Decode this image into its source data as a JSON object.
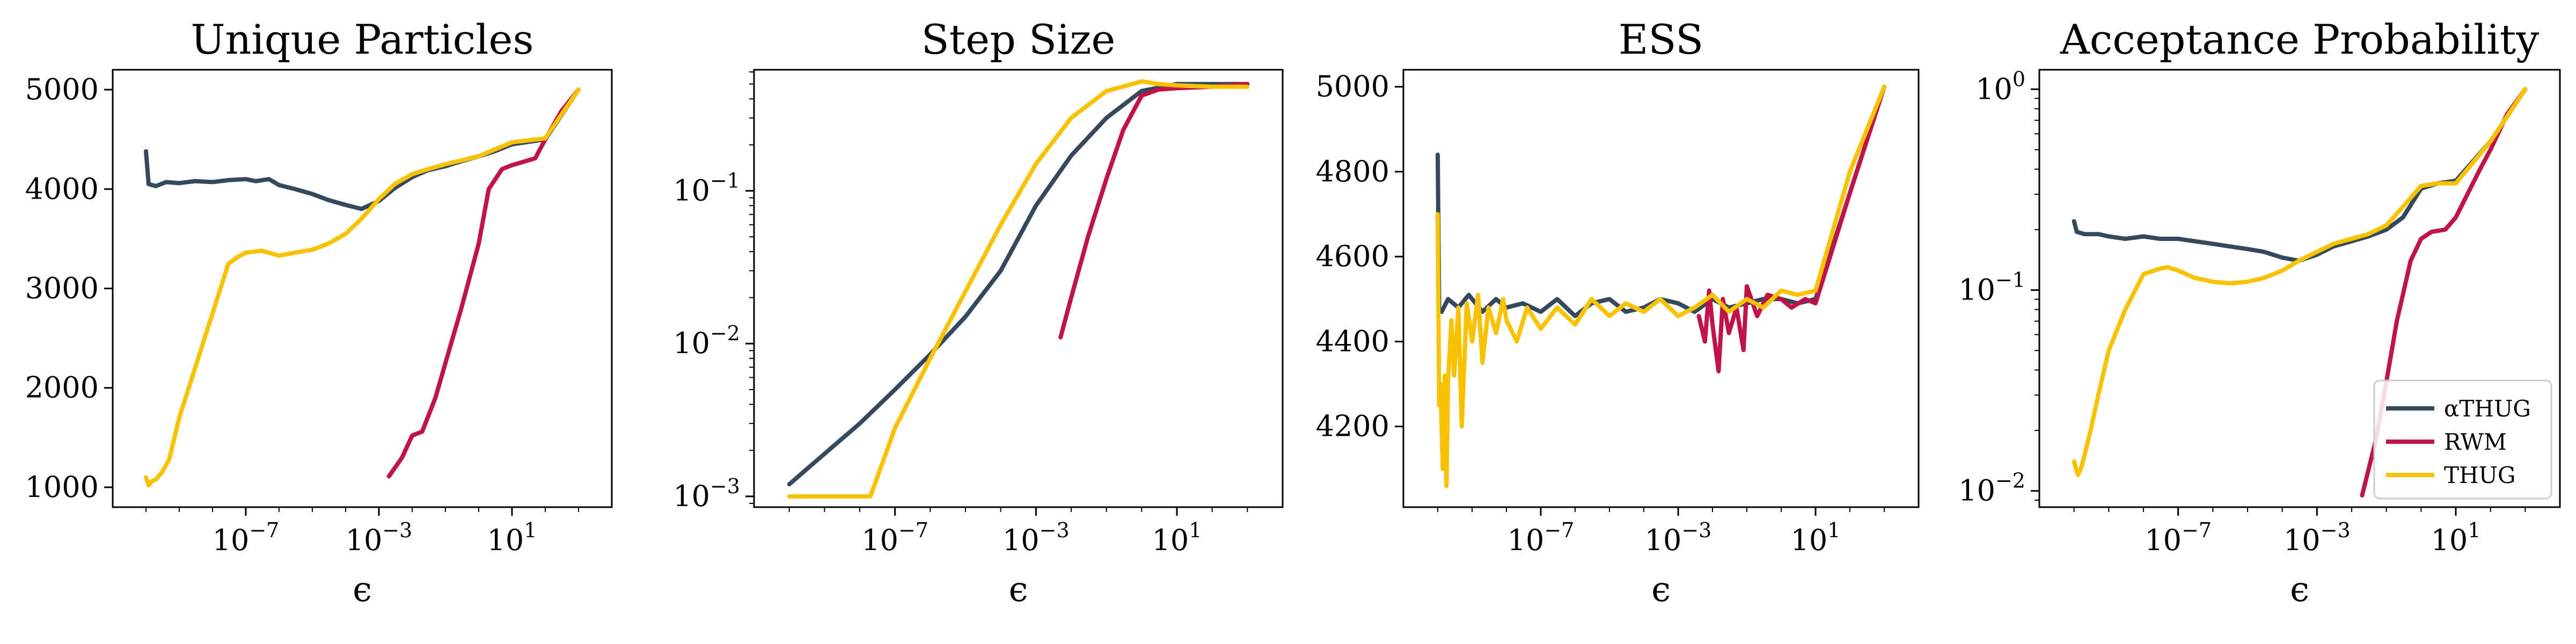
{
  "colors": {
    "alpha_thug": "#34495e",
    "rwm": "#c0134a",
    "thug": "#f8c200"
  },
  "legend": {
    "entries": [
      "αTHUG",
      "RWM",
      "THUG"
    ],
    "placement": "lower-right",
    "panel": 3
  },
  "chart_data": [
    {
      "type": "line",
      "title": "Unique Particles",
      "xlabel": "ϵ",
      "ylabel": "",
      "xscale": "log",
      "yscale": "linear",
      "xlim": [
        1e-11,
        10000.0
      ],
      "ylim": [
        800,
        5200
      ],
      "xticks": [
        {
          "value": 1e-07,
          "label": "10",
          "exp": "−7"
        },
        {
          "value": 0.001,
          "label": "10",
          "exp": "−3"
        },
        {
          "value": 10,
          "label": "10",
          "exp": "1"
        }
      ],
      "yticks": [
        {
          "value": 1000,
          "label": "1000"
        },
        {
          "value": 2000,
          "label": "2000"
        },
        {
          "value": 3000,
          "label": "3000"
        },
        {
          "value": 4000,
          "label": "4000"
        },
        {
          "value": 5000,
          "label": "5000"
        }
      ],
      "series": [
        {
          "name": "αTHUG",
          "key": "alpha_thug",
          "x": [
            1e-10,
            1.2e-10,
            2e-10,
            4e-10,
            1e-09,
            3e-09,
            1e-08,
            3e-08,
            1e-07,
            2e-07,
            5e-07,
            1e-06,
            3e-06,
            1e-05,
            3e-05,
            0.0001,
            0.0003,
            0.001,
            0.003,
            0.01,
            0.03,
            0.1,
            0.3,
            1,
            3,
            10,
            100,
            1000
          ],
          "y": [
            4380,
            4050,
            4030,
            4070,
            4060,
            4080,
            4070,
            4090,
            4100,
            4080,
            4100,
            4040,
            4000,
            3950,
            3890,
            3840,
            3800,
            3880,
            4010,
            4120,
            4190,
            4230,
            4280,
            4330,
            4380,
            4450,
            4500,
            5000
          ]
        },
        {
          "name": "RWM",
          "key": "rwm",
          "x": [
            0.002,
            0.005,
            0.01,
            0.02,
            0.05,
            0.1,
            0.3,
            1,
            2,
            5,
            10,
            50,
            100,
            300,
            1000
          ],
          "y": [
            1110,
            1300,
            1520,
            1560,
            1900,
            2250,
            2800,
            3450,
            4000,
            4200,
            4240,
            4310,
            4500,
            4780,
            5000
          ]
        },
        {
          "name": "THUG",
          "key": "thug",
          "x": [
            1e-10,
            1.2e-10,
            1.5e-10,
            2e-10,
            3e-10,
            5e-10,
            1e-09,
            3e-09,
            1e-08,
            3e-08,
            6e-08,
            1e-07,
            3e-07,
            1e-06,
            3e-06,
            1e-05,
            3e-05,
            0.0001,
            0.0003,
            0.001,
            0.003,
            0.01,
            0.03,
            0.1,
            1,
            10,
            100,
            1000
          ],
          "y": [
            1100,
            1020,
            1060,
            1080,
            1150,
            1280,
            1700,
            2200,
            2750,
            3250,
            3320,
            3360,
            3380,
            3330,
            3360,
            3390,
            3450,
            3550,
            3700,
            3900,
            4050,
            4150,
            4200,
            4250,
            4330,
            4470,
            4510,
            5000
          ]
        }
      ]
    },
    {
      "type": "line",
      "title": "Step Size",
      "xlabel": "ϵ",
      "ylabel": "",
      "xscale": "log",
      "yscale": "log",
      "xlim": [
        1e-11,
        10000.0
      ],
      "ylim": [
        0.00085,
        0.62
      ],
      "xticks": [
        {
          "value": 1e-07,
          "label": "10",
          "exp": "−7"
        },
        {
          "value": 0.001,
          "label": "10",
          "exp": "−3"
        },
        {
          "value": 10,
          "label": "10",
          "exp": "1"
        }
      ],
      "yticks": [
        {
          "value": 0.001,
          "label": "10",
          "exp": "−3"
        },
        {
          "value": 0.01,
          "label": "10",
          "exp": "−2"
        },
        {
          "value": 0.1,
          "label": "10",
          "exp": "−1"
        }
      ],
      "series": [
        {
          "name": "αTHUG",
          "key": "alpha_thug",
          "x": [
            1e-10,
            1e-09,
            1e-08,
            1e-07,
            1e-06,
            1e-05,
            0.0001,
            0.001,
            0.01,
            0.1,
            1,
            10,
            100,
            1000
          ],
          "y": [
            0.0012,
            0.0019,
            0.003,
            0.005,
            0.0085,
            0.015,
            0.03,
            0.08,
            0.17,
            0.3,
            0.45,
            0.5,
            0.5,
            0.5
          ]
        },
        {
          "name": "RWM",
          "key": "rwm",
          "x": [
            0.005,
            0.01,
            0.03,
            0.1,
            0.3,
            1,
            3,
            10,
            100,
            1000
          ],
          "y": [
            0.011,
            0.02,
            0.05,
            0.12,
            0.25,
            0.42,
            0.46,
            0.47,
            0.48,
            0.5
          ]
        },
        {
          "name": "THUG",
          "key": "thug",
          "x": [
            1e-10,
            1e-09,
            1e-08,
            2e-08,
            1e-07,
            1e-06,
            1e-05,
            0.0001,
            0.001,
            0.01,
            0.1,
            1,
            3,
            10,
            100,
            1000
          ],
          "y": [
            0.001,
            0.001,
            0.001,
            0.001,
            0.0028,
            0.008,
            0.022,
            0.06,
            0.15,
            0.3,
            0.45,
            0.52,
            0.5,
            0.49,
            0.48,
            0.48
          ]
        }
      ]
    },
    {
      "type": "line",
      "title": "ESS",
      "xlabel": "ϵ",
      "ylabel": "",
      "xscale": "log",
      "yscale": "linear",
      "xlim": [
        1e-11,
        10000.0
      ],
      "ylim": [
        4010,
        5040
      ],
      "xticks": [
        {
          "value": 1e-07,
          "label": "10",
          "exp": "−7"
        },
        {
          "value": 0.001,
          "label": "10",
          "exp": "−3"
        },
        {
          "value": 10,
          "label": "10",
          "exp": "1"
        }
      ],
      "yticks": [
        {
          "value": 4200,
          "label": "4200"
        },
        {
          "value": 4400,
          "label": "4400"
        },
        {
          "value": 4600,
          "label": "4600"
        },
        {
          "value": 4800,
          "label": "4800"
        },
        {
          "value": 5000,
          "label": "5000"
        }
      ],
      "series": [
        {
          "name": "αTHUG",
          "key": "alpha_thug",
          "x": [
            1e-10,
            1.1e-10,
            1.3e-10,
            2e-10,
            4e-10,
            8e-10,
            2e-09,
            5e-09,
            1e-08,
            3e-08,
            1e-07,
            3e-07,
            1e-06,
            3e-06,
            1e-05,
            3e-05,
            0.0001,
            0.0003,
            0.001,
            0.003,
            0.01,
            0.03,
            0.1,
            0.3,
            1,
            3,
            10,
            100,
            1000
          ],
          "y": [
            4840,
            4480,
            4470,
            4500,
            4480,
            4510,
            4470,
            4500,
            4480,
            4490,
            4470,
            4500,
            4460,
            4490,
            4500,
            4470,
            4480,
            4500,
            4490,
            4470,
            4500,
            4480,
            4490,
            4500,
            4500,
            4490,
            4500,
            4750,
            5000
          ]
        },
        {
          "name": "RWM",
          "key": "rwm",
          "x": [
            0.004,
            0.006,
            0.008,
            0.01,
            0.015,
            0.02,
            0.03,
            0.05,
            0.08,
            0.1,
            0.2,
            0.4,
            1,
            2,
            5,
            10,
            100,
            1000
          ],
          "y": [
            4460,
            4400,
            4520,
            4440,
            4330,
            4500,
            4420,
            4480,
            4380,
            4530,
            4460,
            4510,
            4500,
            4480,
            4500,
            4490,
            4750,
            5000
          ]
        },
        {
          "name": "THUG",
          "key": "thug",
          "x": [
            1e-10,
            1.1e-10,
            1.2e-10,
            1.4e-10,
            1.6e-10,
            1.8e-10,
            2e-10,
            2.5e-10,
            3e-10,
            4e-10,
            5e-10,
            7e-10,
            1e-09,
            1.5e-09,
            2e-09,
            3e-09,
            5e-09,
            8e-09,
            1e-08,
            2e-08,
            4e-08,
            1e-07,
            3e-07,
            1e-06,
            3e-06,
            1e-05,
            3e-05,
            0.0001,
            0.0003,
            0.001,
            0.003,
            0.01,
            0.03,
            0.1,
            0.3,
            1,
            3,
            10,
            100,
            1000
          ],
          "y": [
            4700,
            4250,
            4300,
            4100,
            4320,
            4060,
            4310,
            4450,
            4320,
            4480,
            4200,
            4490,
            4400,
            4510,
            4350,
            4480,
            4420,
            4500,
            4450,
            4400,
            4480,
            4430,
            4480,
            4440,
            4500,
            4460,
            4490,
            4470,
            4500,
            4460,
            4480,
            4510,
            4470,
            4500,
            4480,
            4520,
            4510,
            4520,
            4800,
            5000
          ]
        }
      ]
    },
    {
      "type": "line",
      "title": "Acceptance Probability",
      "xlabel": "ϵ",
      "ylabel": "",
      "xscale": "log",
      "yscale": "log",
      "xlim": [
        1e-11,
        10000.0
      ],
      "ylim": [
        0.0083,
        1.25
      ],
      "xticks": [
        {
          "value": 1e-07,
          "label": "10",
          "exp": "−7"
        },
        {
          "value": 0.001,
          "label": "10",
          "exp": "−3"
        },
        {
          "value": 10,
          "label": "10",
          "exp": "1"
        }
      ],
      "yticks": [
        {
          "value": 0.01,
          "label": "10",
          "exp": "−2"
        },
        {
          "value": 0.1,
          "label": "10",
          "exp": "−1"
        },
        {
          "value": 1,
          "label": "10",
          "exp": "0"
        }
      ],
      "series": [
        {
          "name": "αTHUG",
          "key": "alpha_thug",
          "x": [
            1e-10,
            1.2e-10,
            2e-10,
            5e-10,
            1e-09,
            3e-09,
            1e-08,
            3e-08,
            1e-07,
            3e-07,
            1e-06,
            3e-06,
            1e-05,
            3e-05,
            0.0001,
            0.0003,
            0.001,
            0.003,
            0.01,
            0.03,
            0.1,
            0.3,
            1,
            3,
            10,
            100,
            1000
          ],
          "y": [
            0.22,
            0.195,
            0.19,
            0.19,
            0.185,
            0.18,
            0.185,
            0.18,
            0.18,
            0.175,
            0.17,
            0.165,
            0.16,
            0.155,
            0.145,
            0.14,
            0.15,
            0.165,
            0.175,
            0.185,
            0.2,
            0.23,
            0.32,
            0.34,
            0.35,
            0.55,
            1.0
          ]
        },
        {
          "name": "RWM",
          "key": "rwm",
          "x": [
            0.02,
            0.05,
            0.1,
            0.2,
            0.5,
            1,
            2,
            5,
            10,
            50,
            100,
            300,
            1000
          ],
          "y": [
            0.0095,
            0.018,
            0.035,
            0.07,
            0.14,
            0.18,
            0.195,
            0.2,
            0.23,
            0.4,
            0.5,
            0.75,
            1.0
          ]
        },
        {
          "name": "THUG",
          "key": "thug",
          "x": [
            1e-10,
            1.3e-10,
            1.6e-10,
            2e-10,
            3e-10,
            5e-10,
            1e-09,
            3e-09,
            1e-08,
            3e-08,
            5e-08,
            1e-07,
            3e-07,
            1e-06,
            3e-06,
            1e-05,
            3e-05,
            0.0001,
            0.0003,
            0.001,
            0.003,
            0.01,
            0.03,
            0.1,
            0.3,
            1,
            3,
            10,
            100,
            1000
          ],
          "y": [
            0.014,
            0.012,
            0.013,
            0.015,
            0.02,
            0.03,
            0.05,
            0.08,
            0.12,
            0.128,
            0.13,
            0.125,
            0.115,
            0.11,
            0.108,
            0.11,
            0.115,
            0.125,
            0.14,
            0.155,
            0.17,
            0.18,
            0.19,
            0.21,
            0.26,
            0.33,
            0.34,
            0.34,
            0.55,
            1.0
          ]
        }
      ]
    }
  ]
}
